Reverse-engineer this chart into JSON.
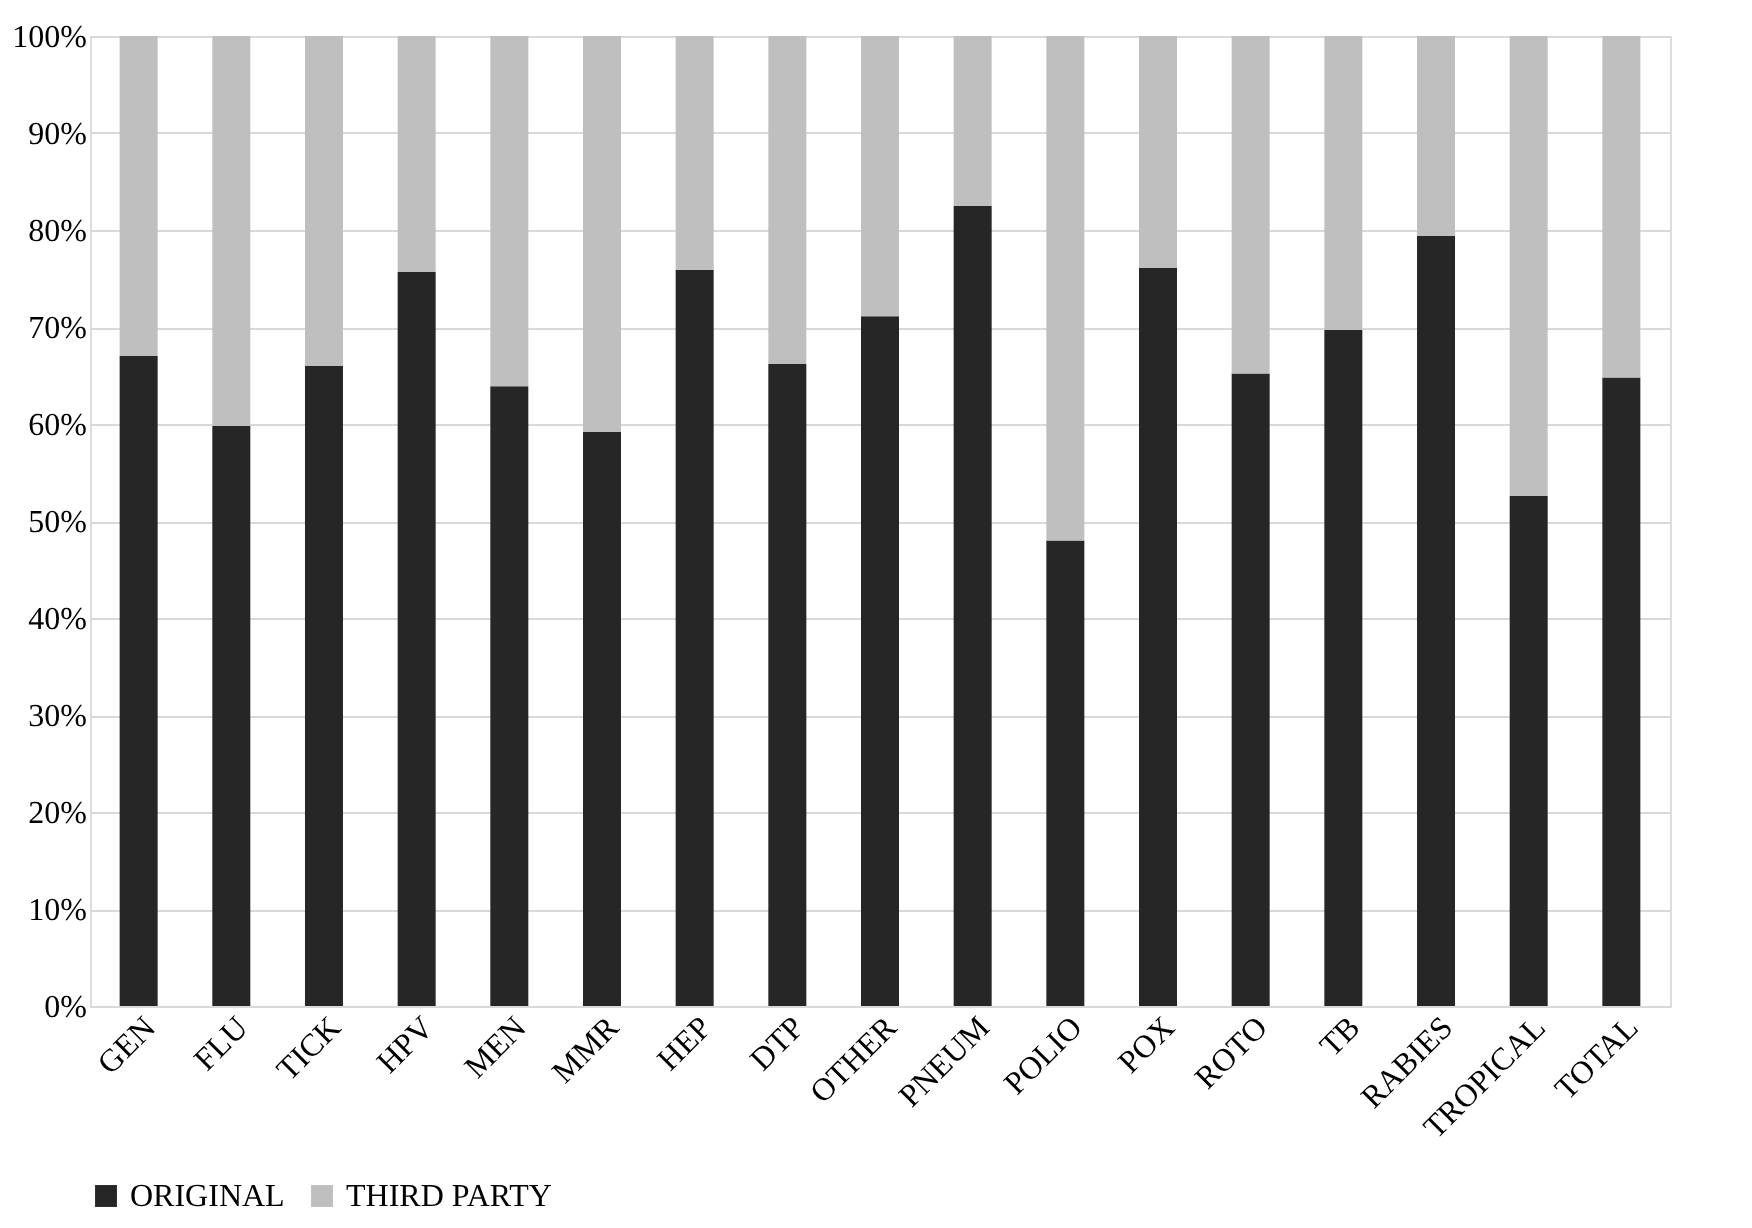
{
  "chart_data": {
    "type": "bar",
    "stacked": true,
    "categories": [
      "GEN",
      "FLU",
      "TICK",
      "HPV",
      "MEN",
      "MMR",
      "HEP",
      "DTP",
      "OTHER",
      "PNEUM",
      "POLIO",
      "POX",
      "ROTO",
      "TB",
      "RABIES",
      "TROPICAL",
      "TOTAL"
    ],
    "series": [
      {
        "name": "ORIGINAL",
        "color": "#262626",
        "values": [
          67.0,
          59.8,
          66.0,
          75.7,
          63.9,
          59.2,
          75.9,
          66.2,
          71.1,
          82.5,
          48.0,
          76.1,
          65.2,
          69.7,
          79.4,
          52.6,
          64.8
        ]
      },
      {
        "name": "THIRD PARTY",
        "color": "#bfbfbf",
        "values": [
          33.0,
          40.2,
          34.0,
          24.3,
          36.1,
          40.8,
          24.1,
          33.8,
          28.9,
          17.5,
          52.0,
          23.9,
          34.8,
          30.3,
          20.6,
          47.4,
          35.2
        ]
      }
    ],
    "ylim": [
      0,
      100
    ],
    "yticks": [
      {
        "value": 0,
        "label": "0%"
      },
      {
        "value": 10,
        "label": "10%"
      },
      {
        "value": 20,
        "label": "20%"
      },
      {
        "value": 30,
        "label": "30%"
      },
      {
        "value": 40,
        "label": "40%"
      },
      {
        "value": 50,
        "label": "50%"
      },
      {
        "value": 60,
        "label": "60%"
      },
      {
        "value": 70,
        "label": "70%"
      },
      {
        "value": 80,
        "label": "80%"
      },
      {
        "value": 90,
        "label": "90%"
      },
      {
        "value": 100,
        "label": "100%"
      }
    ],
    "grid": "y",
    "legend": "bottom"
  }
}
